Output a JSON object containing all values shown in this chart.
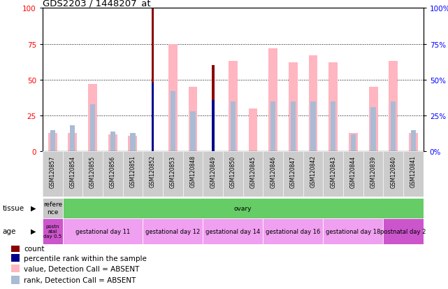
{
  "title": "GDS2203 / 1448207_at",
  "samples": [
    "GSM120857",
    "GSM120854",
    "GSM120855",
    "GSM120856",
    "GSM120851",
    "GSM120852",
    "GSM120853",
    "GSM120848",
    "GSM120849",
    "GSM120850",
    "GSM120845",
    "GSM120846",
    "GSM120847",
    "GSM120842",
    "GSM120843",
    "GSM120844",
    "GSM120839",
    "GSM120840",
    "GSM120841"
  ],
  "count_vals": [
    0,
    0,
    0,
    0,
    0,
    100,
    0,
    0,
    60,
    0,
    0,
    0,
    0,
    0,
    0,
    0,
    0,
    0,
    0
  ],
  "rank_vals": [
    0,
    0,
    0,
    0,
    0,
    48,
    0,
    0,
    36,
    0,
    0,
    0,
    0,
    0,
    0,
    0,
    0,
    0,
    0
  ],
  "pink_vals": [
    13,
    13,
    47,
    12,
    11,
    0,
    75,
    45,
    0,
    63,
    30,
    72,
    62,
    67,
    62,
    13,
    45,
    63,
    13
  ],
  "lblue_vals": [
    15,
    18,
    33,
    14,
    13,
    0,
    42,
    28,
    0,
    35,
    0,
    35,
    35,
    35,
    35,
    12,
    31,
    35,
    15
  ],
  "count_color": "#8B0000",
  "rank_color": "#00008B",
  "pink_color": "#FFB6C1",
  "lblue_color": "#AABBD4",
  "yticks": [
    0,
    25,
    50,
    75,
    100
  ],
  "tissue_row": [
    {
      "label": "refere\nnce",
      "color": "#c8c8c8",
      "start": 0,
      "end": 1
    },
    {
      "label": "ovary",
      "color": "#66cc66",
      "start": 1,
      "end": 19
    }
  ],
  "age_row": [
    {
      "label": "postn\natal\nday 0.5",
      "color": "#cc55cc",
      "start": 0,
      "end": 1
    },
    {
      "label": "gestational day 11",
      "color": "#f0a0f0",
      "start": 1,
      "end": 5
    },
    {
      "label": "gestational day 12",
      "color": "#f0a0f0",
      "start": 5,
      "end": 8
    },
    {
      "label": "gestational day 14",
      "color": "#f0a0f0",
      "start": 8,
      "end": 11
    },
    {
      "label": "gestational day 16",
      "color": "#f0a0f0",
      "start": 11,
      "end": 14
    },
    {
      "label": "gestational day 18",
      "color": "#f0a0f0",
      "start": 14,
      "end": 17
    },
    {
      "label": "postnatal day 2",
      "color": "#cc55cc",
      "start": 17,
      "end": 19
    }
  ],
  "legend_items": [
    {
      "color": "#8B0000",
      "label": "count"
    },
    {
      "color": "#00008B",
      "label": "percentile rank within the sample"
    },
    {
      "color": "#FFB6C1",
      "label": "value, Detection Call = ABSENT"
    },
    {
      "color": "#AABBD4",
      "label": "rank, Detection Call = ABSENT"
    }
  ]
}
